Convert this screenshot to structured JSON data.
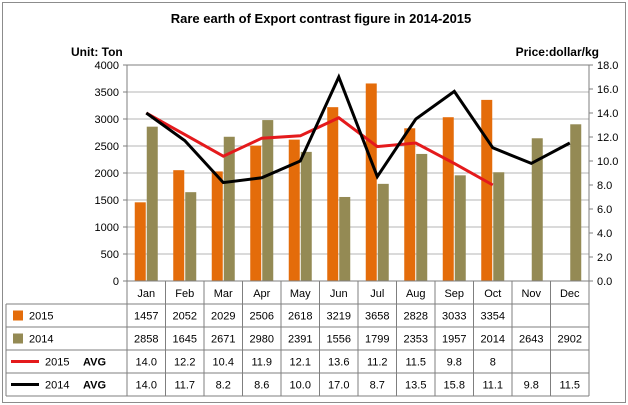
{
  "chart_data": {
    "type": "bar",
    "title": "Rare earth of Export contrast figure in 2014-2015",
    "left_unit": "Unit: Ton",
    "right_unit": "Price:dollar/kg",
    "categories": [
      "Jan",
      "Feb",
      "Mar",
      "Apr",
      "May",
      "Jun",
      "Jul",
      "Aug",
      "Sep",
      "Oct",
      "Nov",
      "Dec"
    ],
    "ylim": [
      0,
      4000
    ],
    "yticks": [
      "0",
      "500",
      "1000",
      "1500",
      "2000",
      "2500",
      "3000",
      "3500",
      "4000"
    ],
    "y2lim": [
      0,
      18
    ],
    "y2ticks": [
      "0.0",
      "2.0",
      "4.0",
      "6.0",
      "8.0",
      "10.0",
      "12.0",
      "14.0",
      "16.0",
      "18.0"
    ],
    "grid": true,
    "series": [
      {
        "name": "2015",
        "kind": "bar",
        "color": "#e46c0a",
        "values": [
          1457,
          2052,
          2029,
          2506,
          2618,
          3219,
          3658,
          2828,
          3033,
          3354,
          null,
          null
        ],
        "labels": [
          "1457",
          "2052",
          "2029",
          "2506",
          "2618",
          "3219",
          "3658",
          "2828",
          "3033",
          "3354",
          "",
          ""
        ]
      },
      {
        "name": "2014",
        "kind": "bar",
        "color": "#948a54",
        "values": [
          2858,
          1645,
          2671,
          2980,
          2391,
          1556,
          1799,
          2353,
          1957,
          2014,
          2643,
          2902
        ],
        "labels": [
          "2858",
          "1645",
          "2671",
          "2980",
          "2391",
          "1556",
          "1799",
          "2353",
          "1957",
          "2014",
          "2643",
          "2902"
        ]
      },
      {
        "name": "2015",
        "suffix": "AVG",
        "kind": "line",
        "axis": "right",
        "color": "#e41a1c",
        "values": [
          14.0,
          12.2,
          10.4,
          11.9,
          12.1,
          13.6,
          11.2,
          11.5,
          9.8,
          8,
          null,
          null
        ],
        "labels": [
          "14.0",
          "12.2",
          "10.4",
          "11.9",
          "12.1",
          "13.6",
          "11.2",
          "11.5",
          "9.8",
          "8",
          "",
          ""
        ]
      },
      {
        "name": "2014",
        "suffix": "AVG",
        "kind": "line",
        "axis": "right",
        "color": "#000000",
        "values": [
          14.0,
          11.7,
          8.2,
          8.6,
          10.0,
          17.0,
          8.7,
          13.5,
          15.8,
          11.1,
          9.8,
          11.5
        ],
        "labels": [
          "14.0",
          "11.7",
          "8.2",
          "8.6",
          "10.0",
          "17.0",
          "8.7",
          "13.5",
          "15.8",
          "11.1",
          "9.8",
          "11.5"
        ]
      }
    ]
  }
}
